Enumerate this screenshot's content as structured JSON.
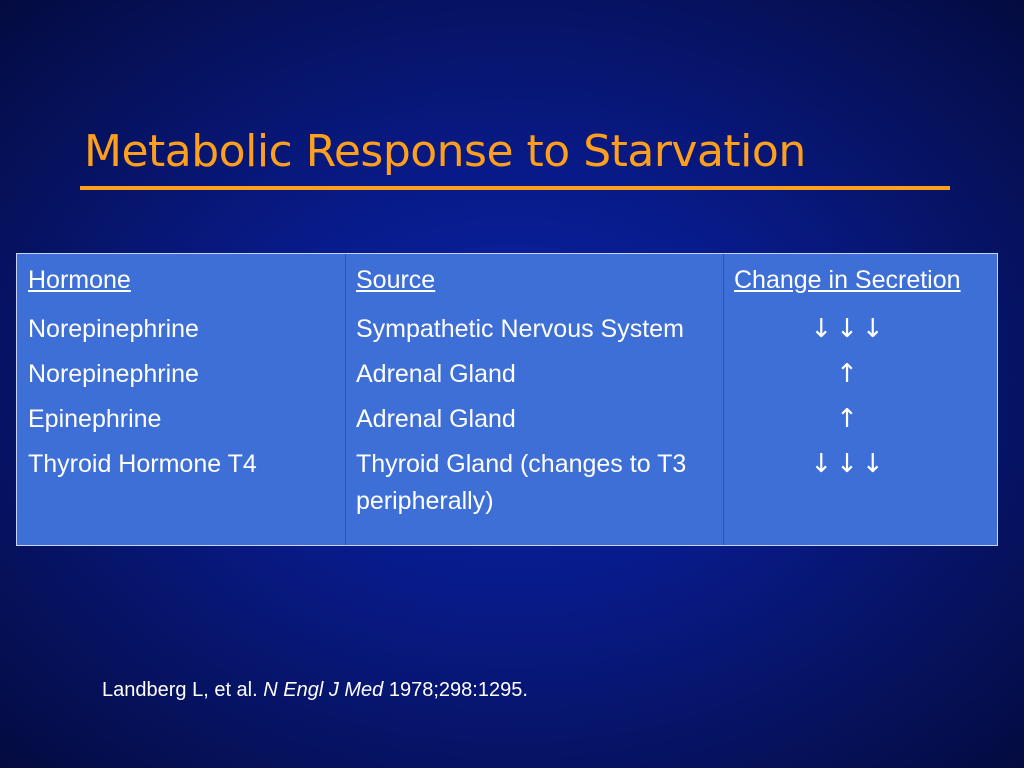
{
  "slide": {
    "title": "Metabolic Response to Starvation",
    "colors": {
      "title": "#ff9f1c",
      "background": "#081a88",
      "table_fill": "#3e6fd6",
      "text": "#ffffff"
    }
  },
  "table": {
    "headers": {
      "hormone": "Hormone",
      "source": "Source",
      "change": "Change in Secretion"
    },
    "rows": [
      {
        "hormone": "Norepinephrine",
        "source": "Sympathetic Nervous System",
        "change": "↓↓↓"
      },
      {
        "hormone": "Norepinephrine",
        "source": "Adrenal Gland",
        "change": "↑"
      },
      {
        "hormone": "Epinephrine",
        "source": "Adrenal Gland",
        "change": "↑"
      },
      {
        "hormone": "Thyroid Hormone T4",
        "source": "Thyroid Gland (changes to T3 peripherally)",
        "change": "↓↓↓"
      }
    ]
  },
  "citation": {
    "authors": "Landberg L, et al.",
    "journal": "N Engl J Med",
    "details": "1978;298:1295."
  }
}
